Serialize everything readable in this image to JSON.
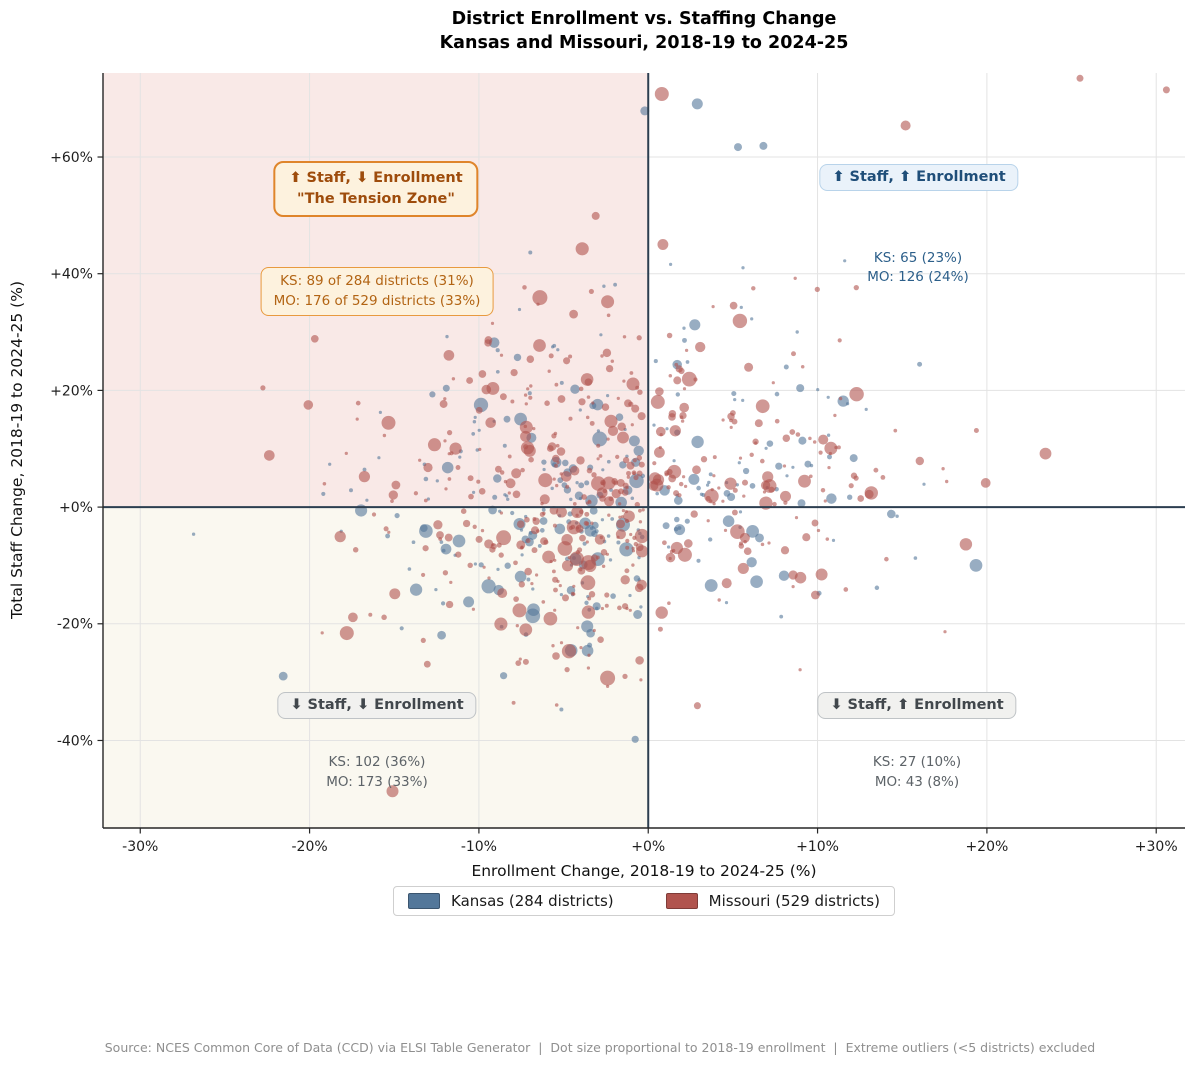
{
  "title": {
    "line1": "District Enrollment vs. Staffing Change",
    "line2": "Kansas and Missouri, 2018-19 to 2024-25"
  },
  "chart_data": {
    "type": "scatter",
    "title": "District Enrollment vs. Staffing Change — Kansas and Missouri, 2018-19 to 2024-25",
    "xlabel": "Enrollment Change, 2018-19 to 2024-25 (%)",
    "ylabel": "Total Staff Change, 2018-19 to 2024-25 (%)",
    "xlim": [
      -32.2,
      31.7
    ],
    "ylim": [
      -55,
      74.4
    ],
    "grid": true,
    "grid_color": "#e3e3e3",
    "zero_line_color": "#2c3e50",
    "spine_color": "#262626",
    "tick_label_color": "#1f1f1f",
    "x_ticks": [
      {
        "v": -30,
        "label": "-30%"
      },
      {
        "v": -20,
        "label": "-20%"
      },
      {
        "v": -10,
        "label": "-10%"
      },
      {
        "v": 0,
        "label": "+0%"
      },
      {
        "v": 10,
        "label": "+10%"
      },
      {
        "v": 20,
        "label": "+20%"
      },
      {
        "v": 30,
        "label": "+30%"
      }
    ],
    "y_ticks": [
      {
        "v": 60,
        "label": "+60%"
      },
      {
        "v": 40,
        "label": "+40%"
      },
      {
        "v": 20,
        "label": "+20%"
      },
      {
        "v": 0,
        "label": "+0%"
      },
      {
        "v": -20,
        "label": "-20%"
      },
      {
        "v": -40,
        "label": "-40%"
      }
    ],
    "quadrant_shading": {
      "staff_up_enroll_down": "#f9e9e7",
      "staff_down_enroll_down": "#faf8f0"
    },
    "series": [
      {
        "name": "Kansas (284 districts)",
        "state": "KS",
        "color": "#53779a",
        "total": 284,
        "quadrants": {
          "staff_up_enroll_down": 89,
          "staff_up_enroll_up": 65,
          "staff_down_enroll_down": 102,
          "staff_down_enroll_up": 27
        },
        "quadrant_percents": {
          "staff_up_enroll_down": "31%",
          "staff_up_enroll_up": "23%",
          "staff_down_enroll_down": "36%",
          "staff_down_enroll_up": "10%"
        }
      },
      {
        "name": "Missouri (529 districts)",
        "state": "MO",
        "color": "#b1544e",
        "total": 529,
        "quadrants": {
          "staff_up_enroll_down": 176,
          "staff_up_enroll_up": 126,
          "staff_down_enroll_down": 173,
          "staff_down_enroll_up": 43
        },
        "quadrant_percents": {
          "staff_up_enroll_down": "33%",
          "staff_up_enroll_up": "24%",
          "staff_down_enroll_down": "33%",
          "staff_down_enroll_up": "8%"
        }
      }
    ],
    "point_style": {
      "opacity": 0.6,
      "r_min": 1.6,
      "r_max": 7.5,
      "r_pow": 3.2
    },
    "generator": {
      "seed": 20240519,
      "x_sigma": 7.6,
      "y_sigma_up": 15.5,
      "y_sigma_down": 12.5,
      "x_off": 0.3,
      "y_off": 0.4
    },
    "notable_points": [
      {
        "state": "MO",
        "x": -6.4,
        "y": 35.9,
        "r": 7.5
      },
      {
        "state": "MO",
        "x": -2.4,
        "y": 35.2,
        "r": 6.5
      },
      {
        "state": "MO",
        "x": -0.9,
        "y": 21.1,
        "r": 6.5
      },
      {
        "state": "MO",
        "x": 0.8,
        "y": 70.8,
        "r": 7
      },
      {
        "state": "KS",
        "x": 2.9,
        "y": 69.1,
        "r": 5.5
      },
      {
        "state": "KS",
        "x": -0.2,
        "y": 67.9,
        "r": 4.5
      },
      {
        "state": "MO",
        "x": 15.2,
        "y": 65.4,
        "r": 5
      },
      {
        "state": "MO",
        "x": -2.4,
        "y": -29.3,
        "r": 7.5
      },
      {
        "state": "MO",
        "x": -17.8,
        "y": -21.6,
        "r": 7
      },
      {
        "state": "MO",
        "x": -15.1,
        "y": -48.7,
        "r": 6
      },
      {
        "state": "MO",
        "x": -7.6,
        "y": -17.7,
        "r": 7
      },
      {
        "state": "KS",
        "x": -6.9,
        "y": 11.9,
        "r": 5
      },
      {
        "state": "MO",
        "x": -7.2,
        "y": 13.7,
        "r": 6.5
      },
      {
        "state": "KS",
        "x": -7.6,
        "y": -2.9,
        "r": 6
      },
      {
        "state": "KS",
        "x": -4.3,
        "y": -8.9,
        "r": 6
      },
      {
        "state": "MO",
        "x": -3.1,
        "y": 49.9,
        "r": 4
      },
      {
        "state": "KS",
        "x": 5.3,
        "y": 61.7,
        "r": 4
      },
      {
        "state": "KS",
        "x": 6.8,
        "y": 61.9,
        "r": 4
      },
      {
        "state": "MO",
        "x": 25.5,
        "y": 73.5,
        "r": 3.5
      },
      {
        "state": "MO",
        "x": 30.6,
        "y": 71.5,
        "r": 3.5
      }
    ]
  },
  "annotations": {
    "tension_zone_box": {
      "line1": "⬆ Staff, ⬇ Enrollment",
      "line2": "\"The Tension Zone\"",
      "text_color": "#9e4c0c",
      "bg": "#fdf2de",
      "border": "#df852b"
    },
    "tension_zone_stats": {
      "line1": "KS: 89 of 284 districts (31%)",
      "line2": "MO: 176 of 529 districts (33%)",
      "text_color": "#b26414",
      "bg": "#fdf2de",
      "border": "#e89a3f"
    },
    "up_up_box": {
      "line1": "⬆ Staff, ⬆ Enrollment",
      "text_color": "#1f4e79",
      "bg": "#eaf2fa",
      "border": "#b8d3ea"
    },
    "up_up_stats": {
      "line1": "KS: 65 (23%)",
      "line2": "MO: 126 (24%)",
      "text_color": "#2c5f8a"
    },
    "down_down_box": {
      "line1": "⬇ Staff, ⬇ Enrollment",
      "text_color": "#41474c",
      "bg": "#f1f1ef",
      "border": "#bfc3c6"
    },
    "down_down_stats": {
      "line1": "KS: 102 (36%)",
      "line2": "MO: 173 (33%)",
      "text_color": "#5d6368"
    },
    "down_up_box": {
      "line1": "⬇ Staff, ⬆ Enrollment",
      "text_color": "#41474c",
      "bg": "#f1f1ef",
      "border": "#bfc3c6"
    },
    "down_up_stats": {
      "line1": "KS: 27 (10%)",
      "line2": "MO: 43 (8%)",
      "text_color": "#5d6368"
    }
  },
  "legend": {
    "items": [
      {
        "label": "Kansas (284 districts)",
        "color": "#53779a"
      },
      {
        "label": "Missouri (529 districts)",
        "color": "#b1544e"
      }
    ]
  },
  "footer": {
    "text": "Source: NCES Common Core of Data (CCD) via ELSI Table Generator  |  Dot size proportional to 2018-19 enrollment  |  Extreme outliers (<5 districts) excluded"
  }
}
